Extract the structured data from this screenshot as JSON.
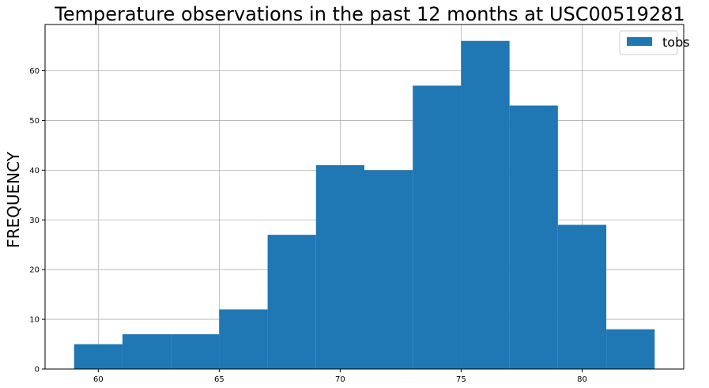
{
  "chart_data": {
    "type": "bar",
    "subtype": "histogram",
    "title": "Temperature observations in the past 12 months at  USC00519281",
    "xlabel": "",
    "ylabel": "FREQUENCY",
    "bin_edges": [
      59,
      61,
      63,
      65,
      67,
      69,
      71,
      73,
      75,
      77,
      79,
      81,
      83
    ],
    "series": [
      {
        "name": "tobs",
        "values": [
          5,
          7,
          7,
          12,
          27,
          41,
          40,
          57,
          66,
          53,
          29,
          8
        ]
      }
    ],
    "xlim": [
      57.8,
      84.2
    ],
    "ylim": [
      0,
      69.3
    ],
    "xticks": [
      60,
      65,
      70,
      75,
      80
    ],
    "yticks": [
      0,
      10,
      20,
      30,
      40,
      50,
      60
    ],
    "grid": true,
    "legend_position": "top-right",
    "bar_color": "#1f77b4",
    "grid_color": "#b0b0b0"
  }
}
